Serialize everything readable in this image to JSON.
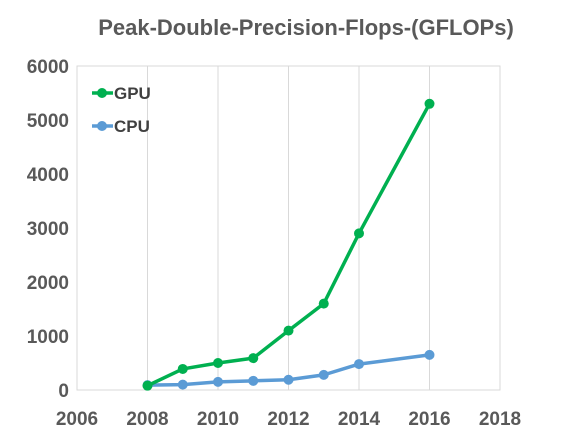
{
  "chart_data": {
    "type": "line",
    "title": "Peak-Double-Precision-Flops-(GFLOPs)",
    "xlabel": "",
    "ylabel": "",
    "xlim": [
      2006,
      2018
    ],
    "ylim": [
      0,
      6000
    ],
    "x_ticks": [
      2006,
      2008,
      2010,
      2012,
      2014,
      2016,
      2018
    ],
    "y_ticks": [
      0,
      1000,
      2000,
      3000,
      4000,
      5000,
      6000
    ],
    "x_tick_labels": [
      "2006",
      "2008",
      "2010",
      "2012",
      "2014",
      "2016",
      "2018"
    ],
    "y_tick_labels": [
      "0",
      "1000",
      "2000",
      "3000",
      "4000",
      "5000",
      "6000"
    ],
    "grid": "vertical",
    "legend_position": "top-left",
    "series": [
      {
        "name": "GPU",
        "color": "#00b050",
        "points": [
          {
            "x": 2008,
            "y": 80
          },
          {
            "x": 2009,
            "y": 390
          },
          {
            "x": 2010,
            "y": 500
          },
          {
            "x": 2011,
            "y": 590
          },
          {
            "x": 2012,
            "y": 1100
          },
          {
            "x": 2013,
            "y": 1600
          },
          {
            "x": 2014,
            "y": 2900
          },
          {
            "x": 2016,
            "y": 5300
          }
        ]
      },
      {
        "name": "CPU",
        "color": "#5b9bd5",
        "points": [
          {
            "x": 2008,
            "y": 90
          },
          {
            "x": 2009,
            "y": 100
          },
          {
            "x": 2010,
            "y": 150
          },
          {
            "x": 2011,
            "y": 170
          },
          {
            "x": 2012,
            "y": 190
          },
          {
            "x": 2013,
            "y": 280
          },
          {
            "x": 2014,
            "y": 480
          },
          {
            "x": 2016,
            "y": 650
          }
        ]
      }
    ]
  }
}
